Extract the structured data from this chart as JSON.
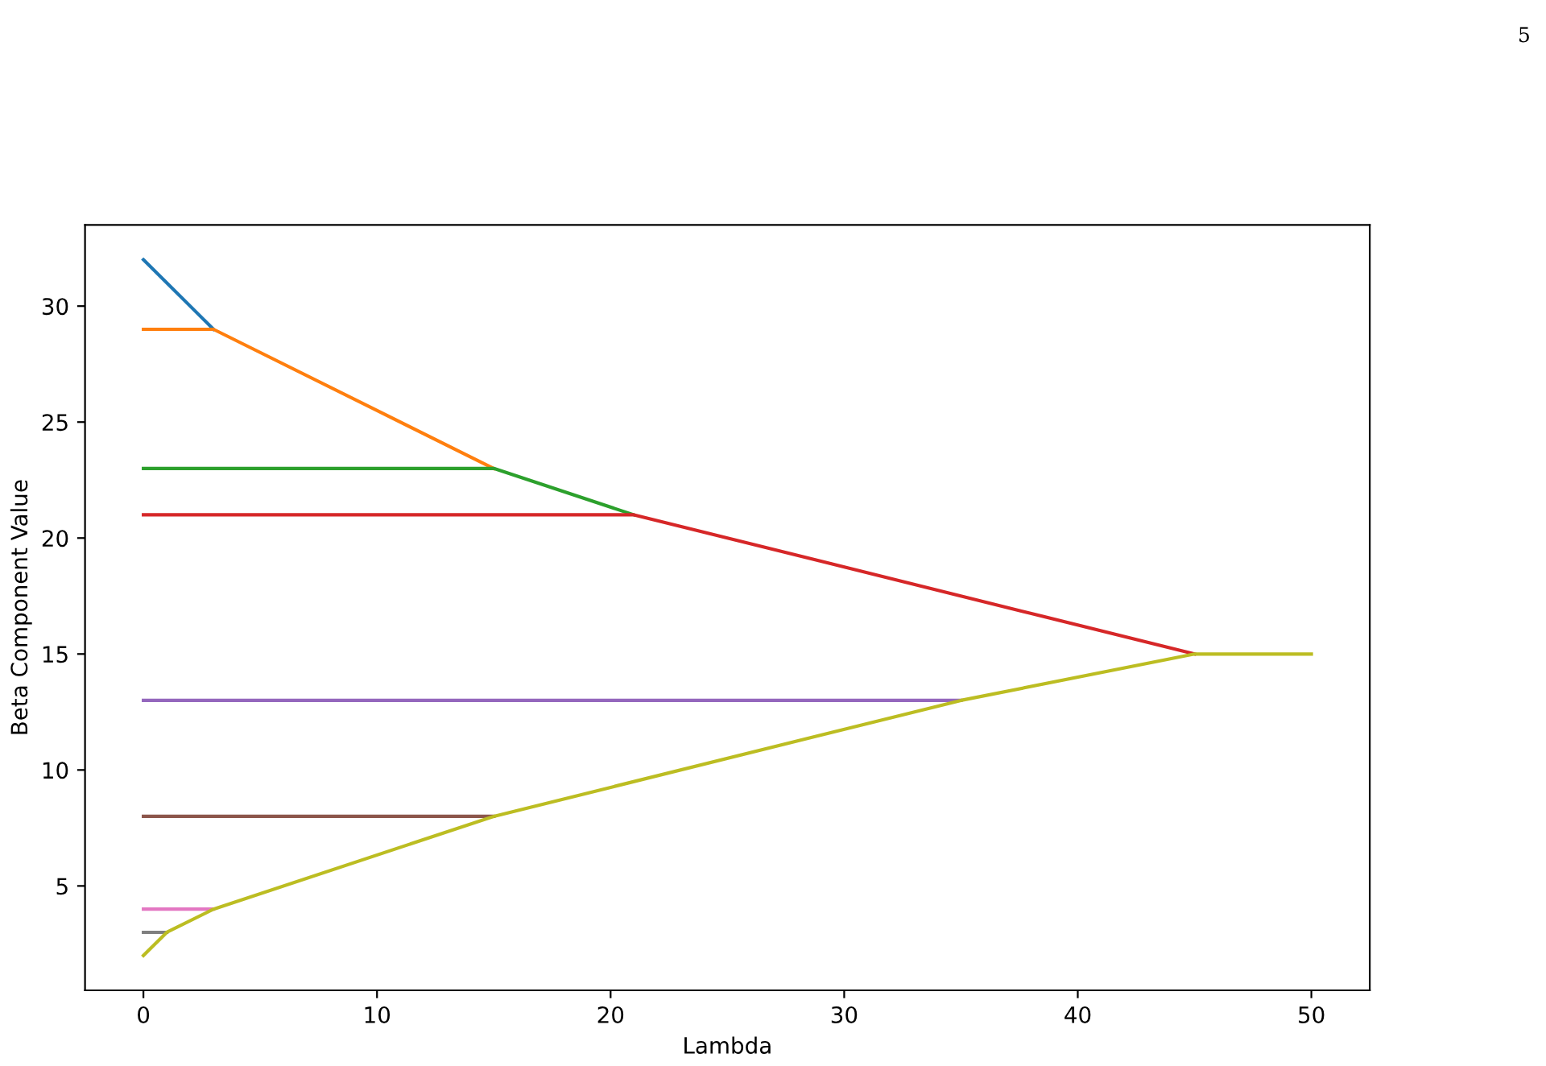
{
  "chart_data": {
    "type": "line",
    "xlabel": "Lambda",
    "ylabel": "Beta Component Value",
    "xlim": [
      -2.5,
      52.5
    ],
    "xticks": [
      0,
      10,
      20,
      30,
      40,
      50
    ],
    "ylim": [
      0.5,
      33.5
    ],
    "yticks": [
      5,
      10,
      15,
      20,
      25,
      30
    ],
    "grid": false,
    "legend": false,
    "marker": "none",
    "line_style": "solid",
    "annotations": [
      "5"
    ],
    "series": [
      {
        "color": "#1f77b4",
        "x": [
          0,
          3
        ],
        "values": [
          32,
          29
        ]
      },
      {
        "color": "#ff7f0e",
        "x": [
          0,
          3,
          15
        ],
        "values": [
          29,
          29,
          23
        ]
      },
      {
        "color": "#2ca02c",
        "x": [
          0,
          15,
          21
        ],
        "values": [
          23,
          23,
          21
        ]
      },
      {
        "color": "#d62728",
        "x": [
          0,
          21,
          45
        ],
        "values": [
          21,
          21,
          15
        ]
      },
      {
        "color": "#9467bd",
        "x": [
          0,
          35
        ],
        "values": [
          13,
          13
        ]
      },
      {
        "color": "#8c564b",
        "x": [
          0,
          15
        ],
        "values": [
          8,
          8
        ]
      },
      {
        "color": "#e377c2",
        "x": [
          0,
          3
        ],
        "values": [
          4,
          4
        ]
      },
      {
        "color": "#7f7f7f",
        "x": [
          0,
          1
        ],
        "values": [
          3,
          3
        ]
      },
      {
        "color": "#bcbd22",
        "x": [
          0,
          1,
          3,
          15,
          35,
          45,
          50
        ],
        "values": [
          2,
          3,
          4,
          8,
          13,
          15,
          15
        ]
      }
    ]
  }
}
